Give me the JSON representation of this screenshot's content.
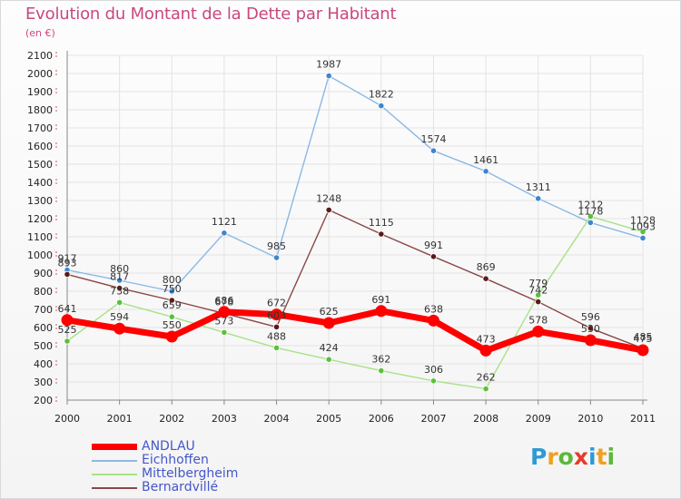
{
  "chart_data": {
    "type": "line",
    "title": "Evolution du Montant de la Dette par Habitant",
    "subtitle": "(en €)",
    "xlabel": "",
    "ylabel": "",
    "ylim": [
      200,
      2100
    ],
    "y_ticks": [
      "200",
      "300",
      "400",
      "500",
      "600",
      "700",
      "800",
      "900",
      "1000",
      "1100",
      "1200",
      "1300",
      "1400",
      "1500",
      "1600",
      "1700",
      "1800",
      "1900",
      "2000",
      "2100"
    ],
    "categories": [
      "2000",
      "2001",
      "2002",
      "2003",
      "2004",
      "2005",
      "2006",
      "2007",
      "2008",
      "2009",
      "2010",
      "2011"
    ],
    "series": [
      {
        "name": "ANDLAU",
        "color": "#ff0000",
        "point_color": "#ff0000",
        "values": [
          641,
          594,
          550,
          686,
          672,
          625,
          691,
          638,
          473,
          578,
          530,
          475
        ],
        "value_labels": [
          "641",
          "594",
          "550",
          "686",
          "672",
          "625",
          "691",
          "638",
          "473",
          "578",
          "530",
          "475"
        ]
      },
      {
        "name": "Eichhoffen",
        "color": "#8ab8e6",
        "point_color": "#3d86cf",
        "values": [
          917,
          860,
          800,
          1121,
          985,
          1987,
          1822,
          1574,
          1461,
          1311,
          1178,
          1093
        ],
        "value_labels": [
          "917",
          "860",
          "800",
          "1121",
          "985",
          "1987",
          "1822",
          "1574",
          "1461",
          "1311",
          "1178",
          "1093"
        ]
      },
      {
        "name": "Mittelbergheim",
        "color": "#a8e288",
        "point_color": "#5cc03a",
        "values": [
          525,
          738,
          659,
          573,
          488,
          424,
          362,
          306,
          262,
          779,
          1212,
          1128
        ],
        "value_labels": [
          "525",
          "738",
          "659",
          "573",
          "488",
          "424",
          "362",
          "306",
          "262",
          "779",
          "1212",
          "1128"
        ]
      },
      {
        "name": "Bernardvillé",
        "color": "#8b4646",
        "point_color": "#5a1a1a",
        "values": [
          893,
          817,
          750,
          678,
          603,
          1248,
          1115,
          991,
          869,
          742,
          596,
          485
        ],
        "value_labels": [
          "893",
          "817",
          "750",
          "678",
          "603",
          "1248",
          "1115",
          "991",
          "869",
          "742",
          "596",
          "485"
        ]
      }
    ]
  },
  "legend": {
    "items": [
      {
        "label": "ANDLAU",
        "color": "#ff0000"
      },
      {
        "label": "Eichhoffen",
        "color": "#8ab8e6"
      },
      {
        "label": "Mittelbergheim",
        "color": "#a8e288"
      },
      {
        "label": "Bernardvillé",
        "color": "#8b4646"
      }
    ]
  },
  "logo": {
    "letters": [
      "P",
      "r",
      "o",
      "x",
      "i",
      "t",
      "i"
    ],
    "colors": [
      "#2e9ad6",
      "#f0a020",
      "#5cb83a",
      "#e83a2a",
      "#2e9ad6",
      "#f0a020",
      "#5cb83a"
    ]
  }
}
